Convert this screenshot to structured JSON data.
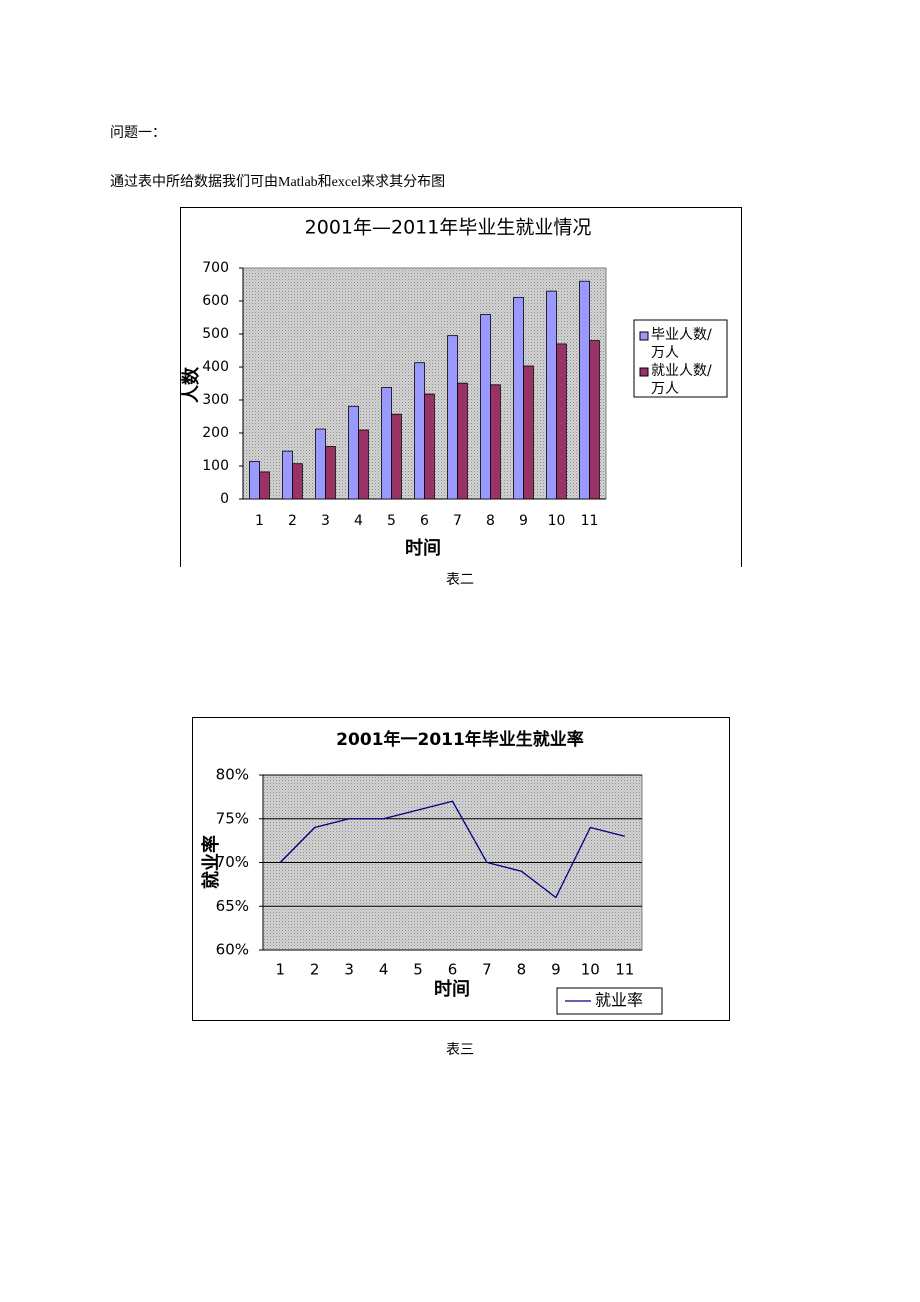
{
  "document": {
    "heading": "问题一：",
    "paragraph": "通过表中所给数据我们可由Matlab和excel来求其分布图",
    "caption_1": "表二",
    "caption_2": "表三"
  },
  "chart_data": [
    {
      "type": "bar",
      "title": "2001年—2011年毕业生就业情况",
      "xlabel": "时间",
      "ylabel": "人数",
      "categories": [
        "1",
        "2",
        "3",
        "4",
        "5",
        "6",
        "7",
        "8",
        "9",
        "10",
        "11"
      ],
      "series": [
        {
          "name": "毕业人数/万人",
          "color": "#9999ff",
          "values": [
            114,
            145,
            212,
            281,
            338,
            413,
            495,
            559,
            611,
            630,
            660
          ]
        },
        {
          "name": "就业人数/万人",
          "color": "#993366",
          "values": [
            82,
            107,
            159,
            209,
            257,
            318,
            351,
            346,
            403,
            470,
            480
          ]
        }
      ],
      "ylim": [
        0,
        700
      ],
      "yticks": [
        0,
        100,
        200,
        300,
        400,
        500,
        600,
        700
      ],
      "grid": false,
      "legend": "right"
    },
    {
      "type": "line",
      "title": "2001年一2011年毕业生就业率",
      "xlabel": "时间",
      "ylabel": "就业率",
      "categories": [
        "1",
        "2",
        "3",
        "4",
        "5",
        "6",
        "7",
        "8",
        "9",
        "10",
        "11"
      ],
      "series": [
        {
          "name": "就业率",
          "color": "#000080",
          "values": [
            70,
            74,
            75,
            75,
            76,
            77,
            70,
            69,
            66,
            74,
            73
          ]
        }
      ],
      "ylim": [
        60,
        80
      ],
      "yticks": [
        {
          "value": 60,
          "label": "60%"
        },
        {
          "value": 65,
          "label": "65%"
        },
        {
          "value": 70,
          "label": "70%"
        },
        {
          "value": 75,
          "label": "75%"
        },
        {
          "value": 80,
          "label": "80%"
        }
      ],
      "grid": true,
      "legend": "bottom-right"
    }
  ]
}
